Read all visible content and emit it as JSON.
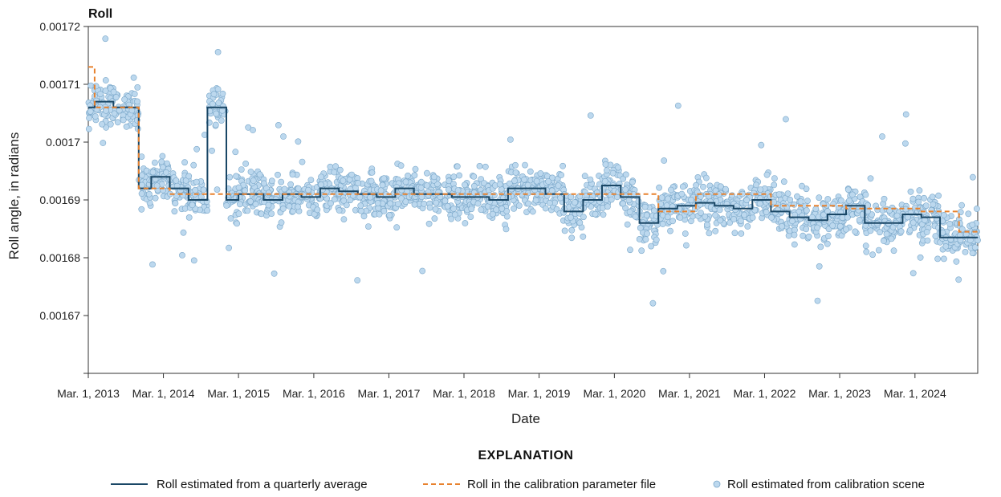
{
  "chart_data": {
    "type": "line",
    "title": "Roll",
    "xlabel": "Date",
    "ylabel": "Roll angle, in radians",
    "xlim": [
      "2013-03-01",
      "2024-12-31"
    ],
    "ylim": [
      0.00166,
      0.00172
    ],
    "yticks": [
      0.00166,
      0.00167,
      0.00168,
      0.00169,
      0.0017,
      0.00171,
      0.00172
    ],
    "ytick_labels": [
      "",
      "0.00167",
      "0.00168",
      "0.00169",
      "0.0017",
      "0.00171",
      "0.00172"
    ],
    "xticks": [
      "2013-03-01",
      "2014-03-01",
      "2015-03-01",
      "2016-03-01",
      "2017-03-01",
      "2018-03-01",
      "2019-03-01",
      "2020-03-01",
      "2021-03-01",
      "2022-03-01",
      "2023-03-01",
      "2024-03-01"
    ],
    "xtick_labels": [
      "Mar. 1, 2013",
      "Mar. 1, 2014",
      "Mar. 1, 2015",
      "Mar. 1, 2016",
      "Mar. 1, 2017",
      "Mar. 1, 2018",
      "Mar. 1, 2019",
      "Mar. 1, 2020",
      "Mar. 1, 2021",
      "Mar. 1, 2022",
      "Mar. 1, 2023",
      "Mar. 1, 2024"
    ],
    "grid": false,
    "legend_position": "bottom",
    "legend_title": "EXPLANATION",
    "series": [
      {
        "name": "Roll estimated from a quarterly average",
        "kind": "step",
        "color": "#1a4766",
        "x": [
          "2013-03-01",
          "2013-04-01",
          "2013-07-01",
          "2013-11-01",
          "2014-01-01",
          "2014-04-01",
          "2014-07-01",
          "2014-10-01",
          "2015-01-01",
          "2015-03-01",
          "2015-07-01",
          "2015-10-01",
          "2016-01-01",
          "2016-04-01",
          "2016-07-01",
          "2016-10-01",
          "2017-01-01",
          "2017-04-01",
          "2017-07-01",
          "2017-10-01",
          "2018-01-01",
          "2018-04-01",
          "2018-07-01",
          "2018-10-01",
          "2019-01-01",
          "2019-04-01",
          "2019-07-01",
          "2019-10-01",
          "2020-01-01",
          "2020-04-01",
          "2020-07-01",
          "2020-10-01",
          "2021-01-01",
          "2021-04-01",
          "2021-07-01",
          "2021-10-01",
          "2022-01-01",
          "2022-04-01",
          "2022-07-01",
          "2022-10-01",
          "2023-01-01",
          "2023-04-01",
          "2023-07-01",
          "2023-10-01",
          "2024-01-01",
          "2024-04-01",
          "2024-07-01",
          "2024-10-01"
        ],
        "y": [
          0.001706,
          0.001707,
          0.001706,
          0.001692,
          0.001694,
          0.001692,
          0.00169,
          0.001706,
          0.00169,
          0.001691,
          0.00169,
          0.001691,
          0.0016905,
          0.001692,
          0.0016915,
          0.001691,
          0.0016905,
          0.001692,
          0.001691,
          0.001691,
          0.0016905,
          0.0016905,
          0.00169,
          0.001692,
          0.001692,
          0.001691,
          0.001688,
          0.00169,
          0.0016925,
          0.0016905,
          0.001686,
          0.0016885,
          0.001689,
          0.0016895,
          0.001689,
          0.0016885,
          0.00169,
          0.001688,
          0.001687,
          0.0016865,
          0.0016875,
          0.001689,
          0.001686,
          0.001686,
          0.0016875,
          0.001687,
          0.0016835,
          0.0016835
        ]
      },
      {
        "name": "Roll in the calibration parameter file",
        "kind": "step-dashed",
        "color": "#e8822e",
        "x": [
          "2013-03-01",
          "2013-04-01",
          "2013-07-01",
          "2013-11-01",
          "2014-04-01",
          "2015-07-01",
          "2016-07-01",
          "2017-07-01",
          "2018-10-01",
          "2019-04-01",
          "2019-10-01",
          "2020-04-01",
          "2020-10-01",
          "2021-01-01",
          "2021-04-01",
          "2022-04-01",
          "2023-04-01",
          "2023-10-01",
          "2024-04-01",
          "2024-10-01"
        ],
        "y": [
          0.001713,
          0.001706,
          0.001706,
          0.001692,
          0.001691,
          0.001691,
          0.001691,
          0.001691,
          0.001691,
          0.001691,
          0.001691,
          0.001691,
          0.001688,
          0.001688,
          0.001691,
          0.001689,
          0.0016885,
          0.0016885,
          0.001688,
          0.0016845
        ]
      },
      {
        "name": "Roll estimated from calibration scene",
        "kind": "scatter",
        "color": "#bcd8ee",
        "edge_color": "#7aa7c9",
        "generated_from_quarterly_average": true
      }
    ]
  }
}
